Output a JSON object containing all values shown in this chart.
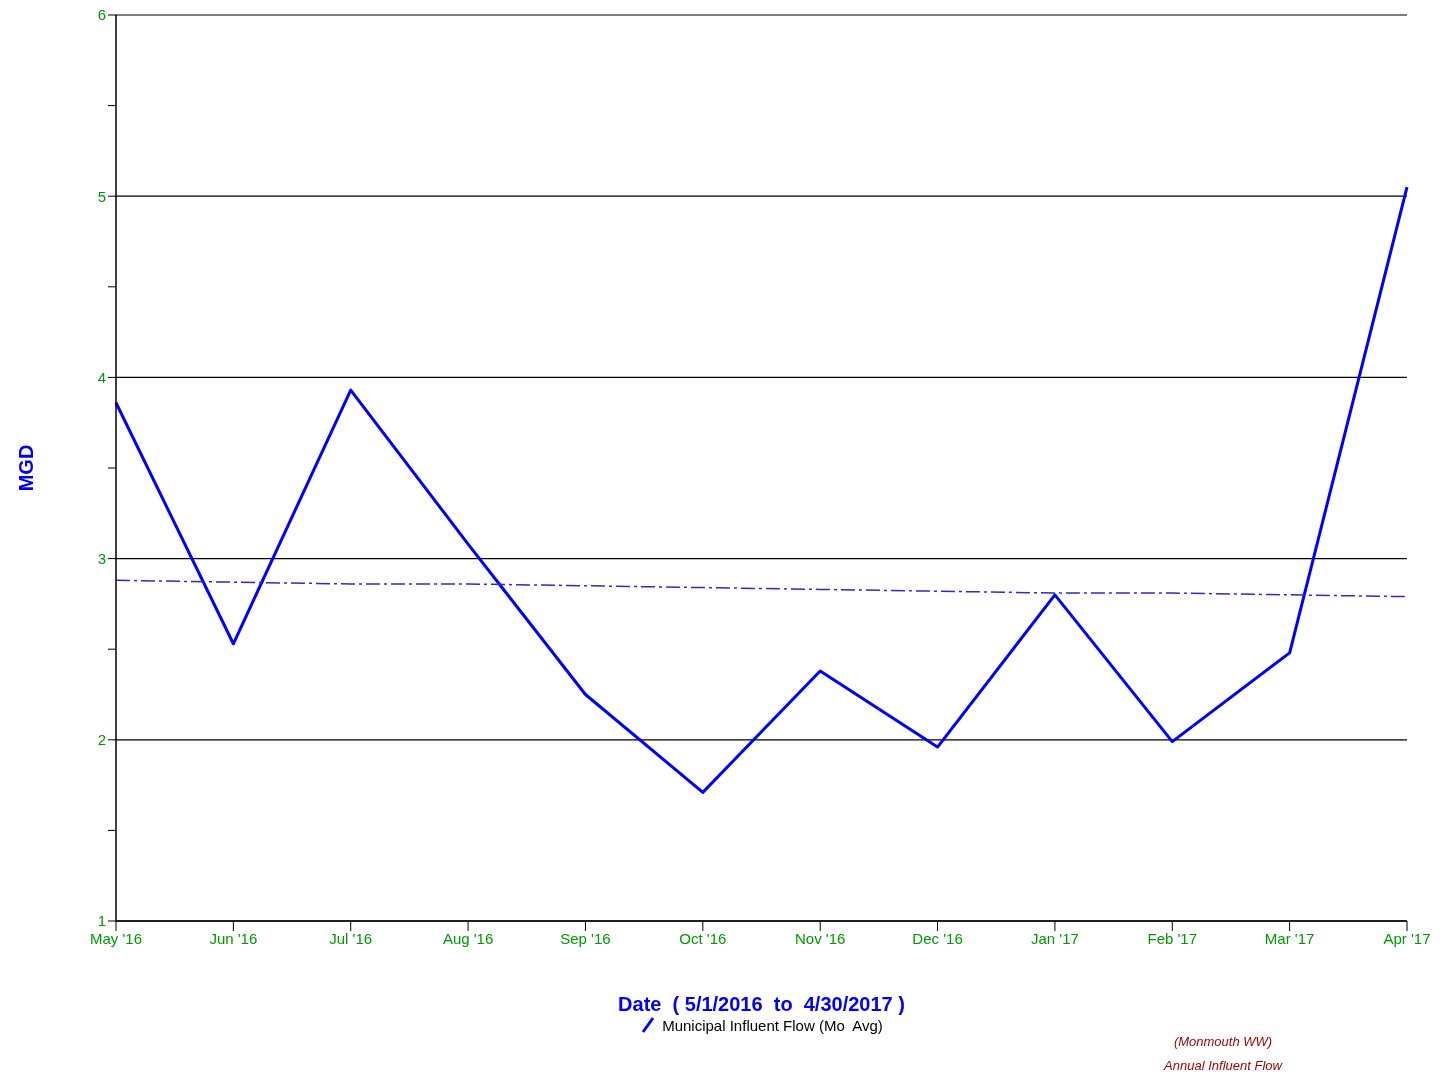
{
  "chart_data": {
    "type": "line",
    "xlabel": "Date  ( 5/1/2016  to  4/30/2017 )",
    "ylabel": "MGD",
    "categories": [
      "May '16",
      "Jun '16",
      "Jul '16",
      "Aug '16",
      "Sep '16",
      "Oct '16",
      "Nov '16",
      "Dec '16",
      "Jan '17",
      "Feb '17",
      "Mar '17",
      "Apr '17"
    ],
    "series": [
      {
        "name": "Municipal Influent Flow (Mo  Avg)",
        "color": "#0000ff",
        "values": [
          3.86,
          2.53,
          3.93,
          3.08,
          2.25,
          1.71,
          2.38,
          1.96,
          2.8,
          1.99,
          2.48,
          5.05
        ],
        "line_style": "solid"
      },
      {
        "type": "line",
        "color": "#2a2ad0",
        "values": [
          2.88,
          2.87,
          2.86,
          2.86,
          2.85,
          2.84,
          2.83,
          2.82,
          2.81,
          2.81,
          2.8,
          2.79
        ],
        "line_style": "dashed"
      }
    ],
    "ylim": [
      1,
      6
    ],
    "yticks": [
      1,
      {
        "value": 1.5,
        "label": null
      },
      2,
      {
        "value": 2.5,
        "label": null
      },
      3,
      {
        "value": 3.5,
        "label": null
      },
      4,
      {
        "value": 4.5,
        "label": null
      },
      5,
      {
        "value": 5.5,
        "label": null
      },
      6
    ],
    "grid": "y",
    "legend": "bottom",
    "marker": "none",
    "annotations": [
      "(Monmouth WW)",
      "Annual Influent Flow"
    ]
  }
}
